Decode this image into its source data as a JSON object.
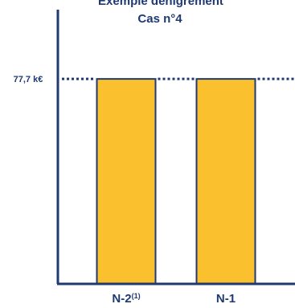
{
  "chart_data": {
    "type": "bar",
    "title": "Cas n°4",
    "top_text": "Exemple dénigrement",
    "categories": [
      {
        "main": "N-2",
        "sup": "(1)"
      },
      {
        "main": "N-1",
        "sup": ""
      }
    ],
    "values": [
      77.7,
      77.7
    ],
    "threshold": {
      "value": 77.7,
      "label": "77,7 k€"
    },
    "ylim": [
      0,
      100
    ],
    "grid": false,
    "colors": {
      "bar_fill": "#FBC02D",
      "bar_stroke": "#1F3A73",
      "axis": "#1F3A73",
      "text": "#1F3A73",
      "dotted_line": "#1F3A73"
    }
  }
}
